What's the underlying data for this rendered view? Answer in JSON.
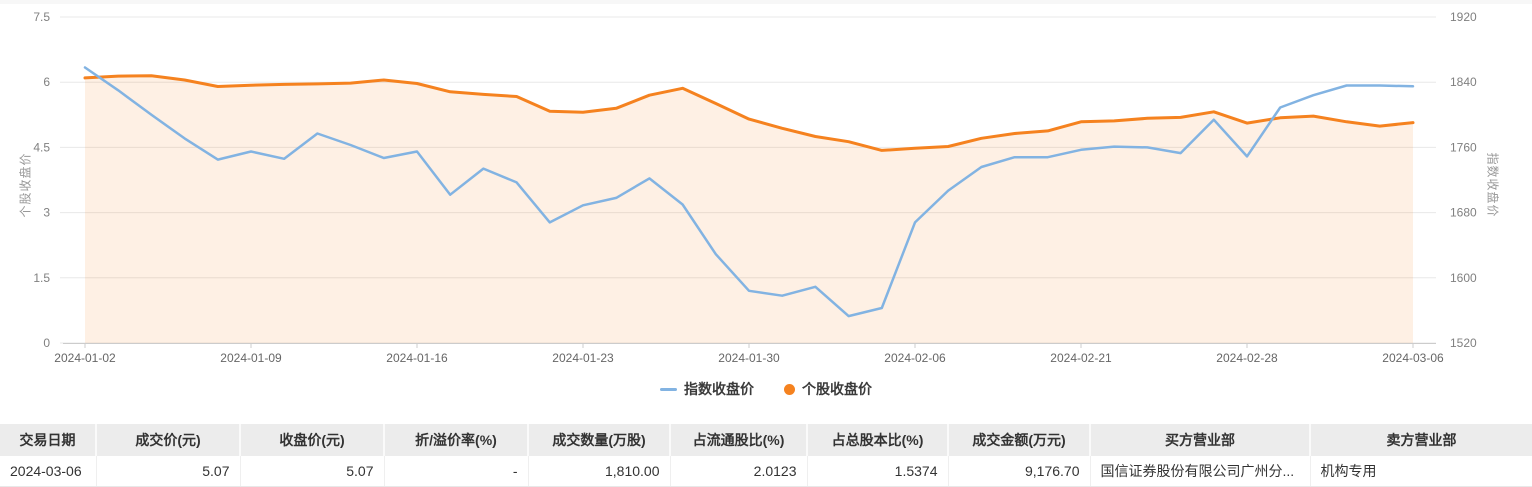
{
  "chart_data": {
    "type": "line",
    "title": "",
    "grid": true,
    "legend_position": "bottom-center",
    "x_dates": [
      "2024-01-02",
      "2024-01-03",
      "2024-01-04",
      "2024-01-05",
      "2024-01-08",
      "2024-01-09",
      "2024-01-10",
      "2024-01-11",
      "2024-01-12",
      "2024-01-15",
      "2024-01-16",
      "2024-01-17",
      "2024-01-18",
      "2024-01-19",
      "2024-01-22",
      "2024-01-23",
      "2024-01-24",
      "2024-01-25",
      "2024-01-26",
      "2024-01-29",
      "2024-01-30",
      "2024-01-31",
      "2024-02-01",
      "2024-02-02",
      "2024-02-05",
      "2024-02-06",
      "2024-02-07",
      "2024-02-08",
      "2024-02-19",
      "2024-02-20",
      "2024-02-21",
      "2024-02-22",
      "2024-02-23",
      "2024-02-26",
      "2024-02-27",
      "2024-02-28",
      "2024-02-29",
      "2024-03-01",
      "2024-03-04",
      "2024-03-05",
      "2024-03-06"
    ],
    "x_ticks": [
      {
        "index": 0,
        "label": "2024-01-02"
      },
      {
        "index": 5,
        "label": "2024-01-09"
      },
      {
        "index": 10,
        "label": "2024-01-16"
      },
      {
        "index": 15,
        "label": "2024-01-23"
      },
      {
        "index": 20,
        "label": "2024-01-30"
      },
      {
        "index": 25,
        "label": "2024-02-06"
      },
      {
        "index": 30,
        "label": "2024-02-21"
      },
      {
        "index": 35,
        "label": "2024-02-28"
      },
      {
        "index": 40,
        "label": "2024-03-06"
      }
    ],
    "series": [
      {
        "name": "指数收盘价",
        "type": "line",
        "axis": "right",
        "color": "#82b3e2",
        "values": [
          1858,
          1830,
          1800,
          1771,
          1745,
          1755,
          1746,
          1777,
          1763,
          1747,
          1755,
          1702,
          1734,
          1717,
          1668,
          1689,
          1698,
          1722,
          1690,
          1629,
          1584,
          1578,
          1589,
          1553,
          1563,
          1668,
          1707,
          1736,
          1748,
          1748,
          1757,
          1761,
          1760,
          1753,
          1794,
          1749,
          1809,
          1824,
          1836,
          1836,
          1835
        ]
      },
      {
        "name": "个股收盘价",
        "type": "area",
        "axis": "left",
        "color": "#f5821f",
        "fill_opacity": 0.12,
        "values": [
          6.1,
          6.14,
          6.15,
          6.05,
          5.9,
          5.93,
          5.95,
          5.96,
          5.98,
          6.05,
          5.97,
          5.78,
          5.72,
          5.67,
          5.33,
          5.31,
          5.4,
          5.7,
          5.86,
          5.51,
          5.15,
          4.94,
          4.75,
          4.63,
          4.43,
          4.48,
          4.52,
          4.71,
          4.82,
          4.88,
          5.09,
          5.11,
          5.17,
          5.19,
          5.32,
          5.06,
          5.18,
          5.22,
          5.09,
          4.99,
          5.07
        ]
      }
    ],
    "left_axis": {
      "title": "个股收盘价",
      "min": 0,
      "max": 7.5,
      "ticks": [
        "7.5",
        "6",
        "4.5",
        "3",
        "1.5",
        "0"
      ]
    },
    "right_axis": {
      "title": "指数收盘价",
      "min": 1520,
      "max": 1920,
      "ticks": [
        "1920",
        "1840",
        "1760",
        "1680",
        "1600",
        "1520"
      ]
    },
    "legend": [
      {
        "label": "指数收盘价",
        "marker": "line",
        "color": "#82b3e2"
      },
      {
        "label": "个股收盘价",
        "marker": "circle",
        "color": "#f5821f"
      }
    ],
    "colors": {
      "gridline": "#e8e8e8",
      "axis_line": "#cccccc",
      "tick_label": "#808080",
      "x_label": "#666666"
    }
  },
  "table": {
    "columns": [
      {
        "label": "交易日期"
      },
      {
        "label": "成交价(元)"
      },
      {
        "label": "收盘价(元)"
      },
      {
        "label": "折/溢价率(%)"
      },
      {
        "label": "成交数量(万股)"
      },
      {
        "label": "占流通股比(%)"
      },
      {
        "label": "占总股本比(%)"
      },
      {
        "label": "成交金额(万元)"
      },
      {
        "label": "买方营业部"
      },
      {
        "label": "卖方营业部"
      }
    ],
    "rows": [
      [
        "2024-03-06",
        "5.07",
        "5.07",
        "-",
        "1,810.00",
        "2.0123",
        "1.5374",
        "9,176.70",
        "国信证券股份有限公司广州分...",
        "机构专用"
      ]
    ]
  }
}
